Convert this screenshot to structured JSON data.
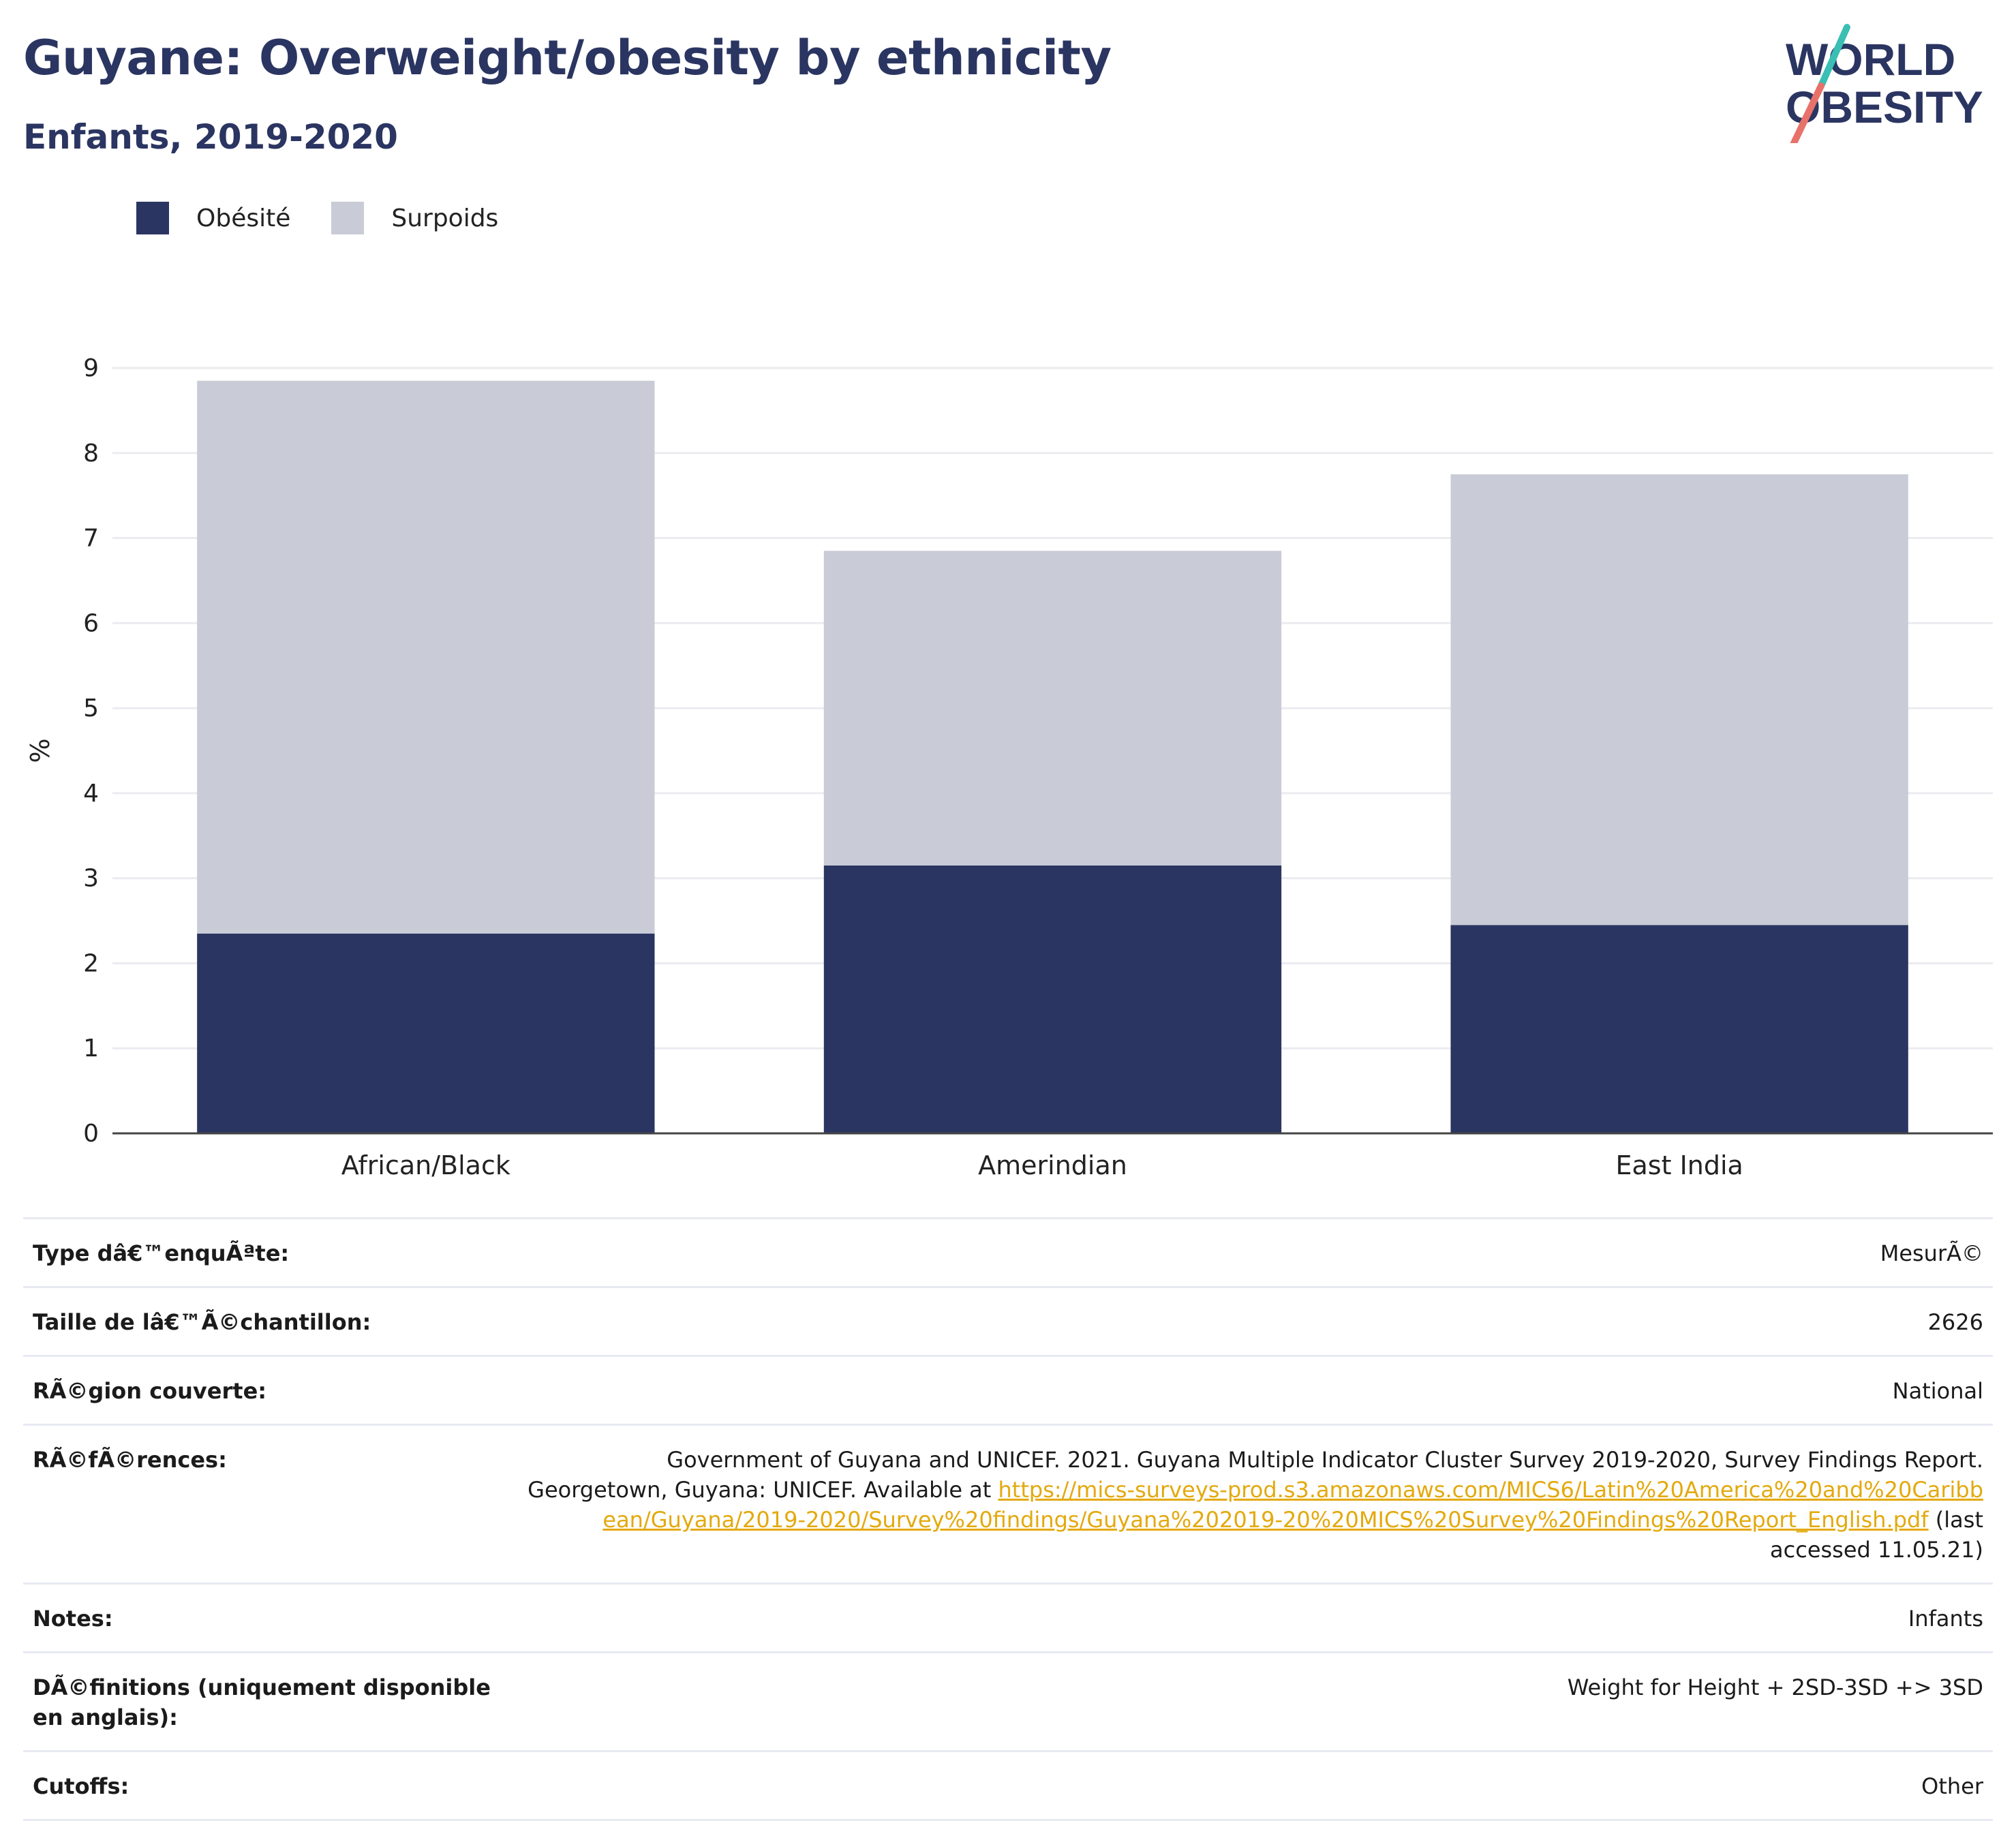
{
  "header": {
    "title": "Guyane: Overweight/obesity by ethnicity",
    "subtitle": "Enfants, 2019-2020",
    "logo_line1": "WORLD",
    "logo_line2": "OBESITY"
  },
  "colors": {
    "obesite": "#2b3561",
    "surpoids": "#c9ccd7",
    "title": "#2b3561",
    "link": "#e3a90e"
  },
  "chart_data": {
    "type": "bar",
    "stacked": true,
    "categories": [
      "African/Black",
      "Amerindian",
      "East India"
    ],
    "series": [
      {
        "name": "Obésité",
        "values": [
          2.35,
          3.15,
          2.45
        ]
      },
      {
        "name": "Surpoids",
        "values": [
          6.5,
          3.7,
          5.3
        ]
      }
    ],
    "totals": [
      8.85,
      6.85,
      7.75
    ],
    "ylabel": "%",
    "ylim": [
      0,
      9
    ],
    "yticks": [
      "0",
      "1",
      "2",
      "3",
      "4",
      "5",
      "6",
      "7",
      "8",
      "9"
    ],
    "grid": true,
    "legend_position": "top-left"
  },
  "metadata": {
    "rows": [
      {
        "label": "Type dâ€™enquÃªte:",
        "value": "MesurÃ©"
      },
      {
        "label": "Taille de lâ€™Ã©chantillon:",
        "value": "2626"
      },
      {
        "label": "RÃ©gion couverte:",
        "value": "National"
      },
      {
        "label": "RÃ©fÃ©rences:",
        "value_text": "Government of Guyana and UNICEF. 2021. Guyana Multiple Indicator Cluster Survey 2019-2020, Survey Findings Report. Georgetown, Guyana: UNICEF. Available at ",
        "value_link": "https://mics-surveys-prod.s3.amazonaws.com/MICS6/Latin%20America%20and%20Caribbean/Guyana/2019-2020/Survey%20findings/Guyana%202019-20%20MICS%20Survey%20Findings%20Report_English.pdf",
        "value_suffix": " (last accessed 11.05.21)"
      },
      {
        "label": "Notes:",
        "value": "Infants"
      },
      {
        "label": "DÃ©finitions (uniquement disponible en anglais):",
        "value": "Weight for Height + 2SD-3SD +> 3SD"
      },
      {
        "label": "Cutoffs:",
        "value": "Other"
      }
    ]
  }
}
